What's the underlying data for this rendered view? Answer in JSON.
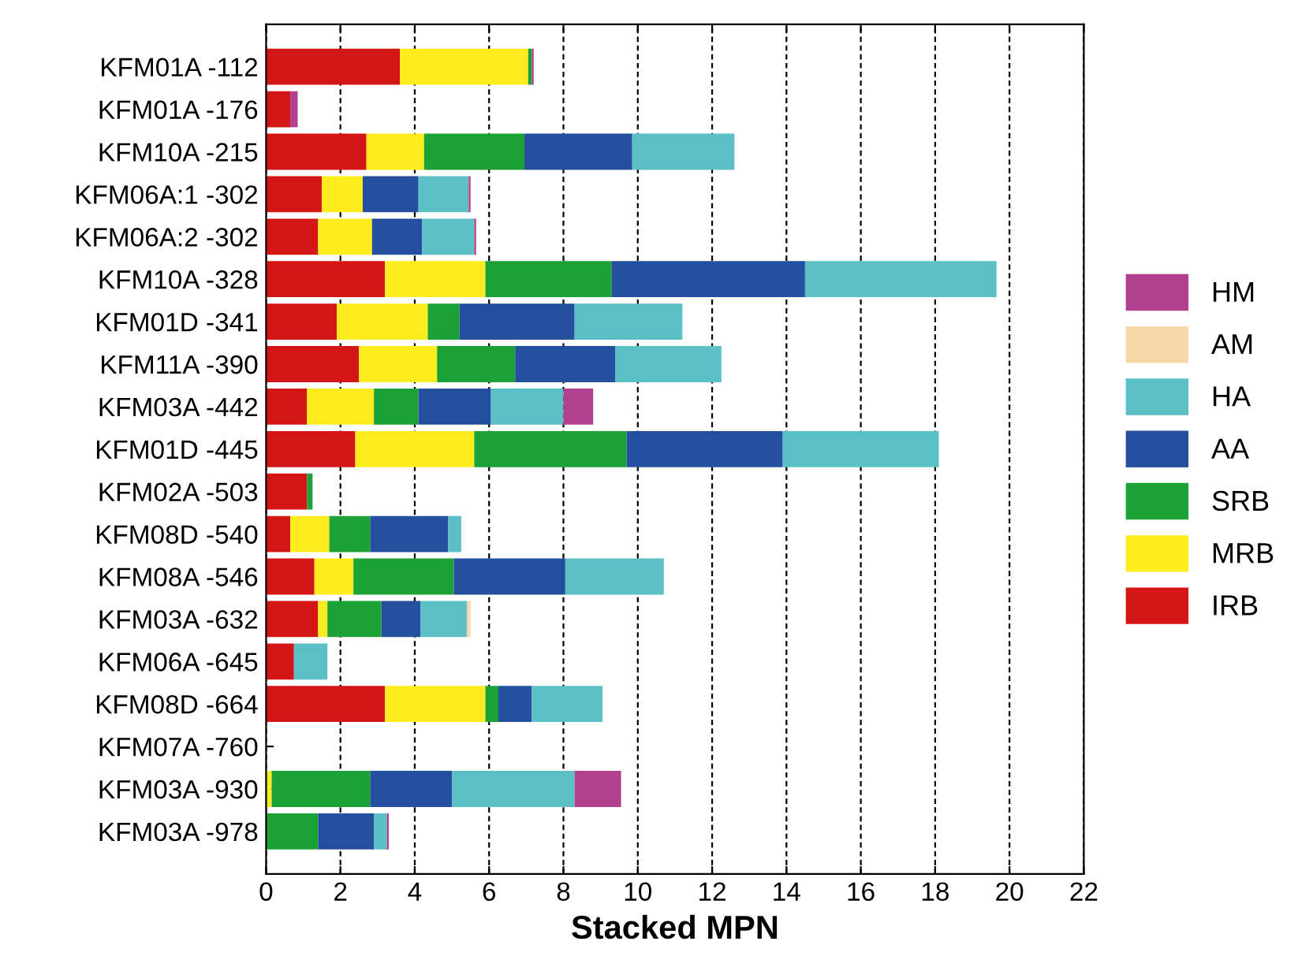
{
  "chart_data": {
    "type": "bar",
    "orientation": "horizontal",
    "stacked": true,
    "xlabel": "Stacked MPN",
    "categories": [
      "KFM01A -112",
      "KFM01A -176",
      "KFM10A -215",
      "KFM06A:1 -302",
      "KFM06A:2 -302",
      "KFM10A -328",
      "KFM01D -341",
      "KFM11A -390",
      "KFM03A -442",
      "KFM01D -445",
      "KFM02A -503",
      "KFM08D -540",
      "KFM08A -546",
      "KFM03A -632",
      "KFM06A -645",
      "KFM08D -664",
      "KFM07A -760",
      "KFM03A -930",
      "KFM03A -978"
    ],
    "series": [
      {
        "name": "IRB",
        "color": "#d31515",
        "values": [
          3.6,
          0.65,
          2.7,
          1.5,
          1.4,
          3.2,
          1.9,
          2.5,
          1.1,
          2.4,
          1.1,
          0.65,
          1.3,
          1.4,
          0.75,
          3.2,
          0,
          0,
          0
        ]
      },
      {
        "name": "MRB",
        "color": "#ffec1f",
        "values": [
          3.45,
          0,
          1.55,
          1.1,
          1.45,
          2.7,
          2.45,
          2.1,
          1.8,
          3.2,
          0,
          1.05,
          1.05,
          0.25,
          0,
          2.7,
          0,
          0.15,
          0
        ]
      },
      {
        "name": "SRB",
        "color": "#1ca137",
        "values": [
          0.1,
          0,
          2.7,
          0,
          0,
          3.4,
          0.85,
          2.1,
          1.2,
          4.1,
          0.15,
          1.1,
          2.7,
          1.45,
          0,
          0.35,
          0,
          2.65,
          1.4
        ]
      },
      {
        "name": "AA",
        "color": "#244f9e",
        "values": [
          0,
          0,
          2.9,
          1.5,
          1.35,
          5.2,
          3.1,
          2.7,
          1.95,
          4.2,
          0,
          2.1,
          3.0,
          1.05,
          0,
          0.9,
          0,
          2.2,
          1.5
        ]
      },
      {
        "name": "HA",
        "color": "#5bbfc6",
        "values": [
          0,
          0,
          2.75,
          1.35,
          1.4,
          5.15,
          2.9,
          2.85,
          1.95,
          4.2,
          0,
          0.35,
          2.65,
          1.25,
          0.9,
          1.9,
          0,
          3.3,
          0.35
        ]
      },
      {
        "name": "AM",
        "color": "#f8d8a8",
        "values": [
          0,
          0,
          0,
          0,
          0,
          0,
          0,
          0,
          0,
          0,
          0,
          0,
          0,
          0.1,
          0,
          0,
          0,
          0,
          0
        ]
      },
      {
        "name": "HM",
        "color": "#b33f8f",
        "values": [
          0.05,
          0.2,
          0,
          0.05,
          0.05,
          0,
          0,
          0,
          0.8,
          0,
          0,
          0,
          0,
          0,
          0,
          0,
          0,
          1.25,
          0.05
        ]
      }
    ],
    "xlim": [
      0,
      22
    ],
    "xticks": [
      0,
      2,
      4,
      6,
      8,
      10,
      12,
      14,
      16,
      18,
      20,
      22
    ],
    "grid": "x",
    "legend": "right"
  }
}
